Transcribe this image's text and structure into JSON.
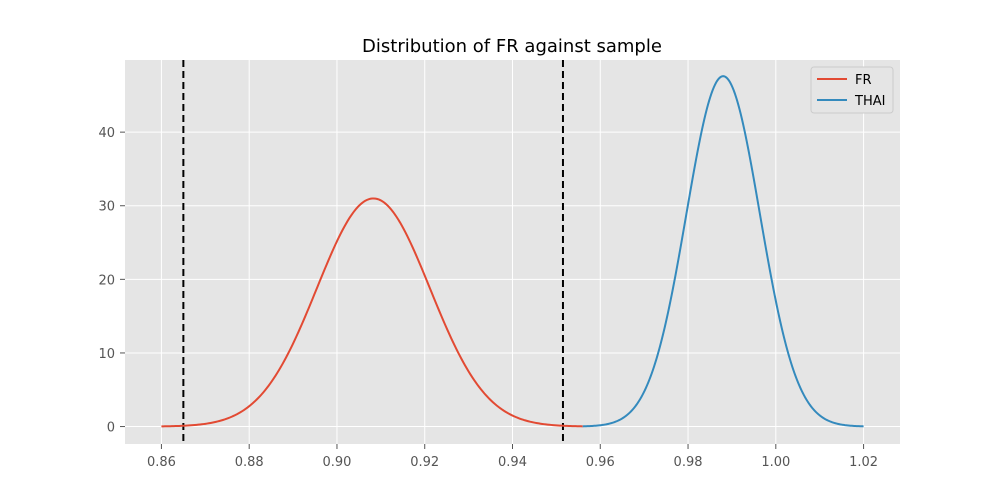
{
  "chart_data": {
    "type": "line",
    "title": "Distribution of FR against sample",
    "xlabel": "",
    "ylabel": "",
    "xlim": [
      0.8517,
      1.0283
    ],
    "ylim": [
      -2.37,
      49.8
    ],
    "xticks": [
      0.86,
      0.88,
      0.9,
      0.92,
      0.94,
      0.96,
      0.98,
      1.0,
      1.02
    ],
    "xtick_labels": [
      "0.86",
      "0.88",
      "0.90",
      "0.92",
      "0.94",
      "0.96",
      "0.98",
      "1.00",
      "1.02"
    ],
    "yticks": [
      0,
      10,
      20,
      30,
      40
    ],
    "ytick_labels": [
      "0",
      "10",
      "20",
      "30",
      "40"
    ],
    "grid": true,
    "legend": "top-right",
    "series": [
      {
        "name": "FR",
        "color": "#E24A33",
        "style": "normal-curve",
        "mean": 0.9083,
        "peak": 30.99,
        "x_range": [
          0.86,
          0.956
        ]
      },
      {
        "name": "THAI",
        "color": "#348ABD",
        "style": "normal-curve",
        "mean": 0.988,
        "peak": 47.6,
        "x_range": [
          0.956,
          1.02
        ]
      }
    ],
    "vlines": [
      {
        "x": 0.865,
        "color": "#000000",
        "style": "dashed"
      },
      {
        "x": 0.9515,
        "color": "#000000",
        "style": "dashed"
      }
    ]
  }
}
